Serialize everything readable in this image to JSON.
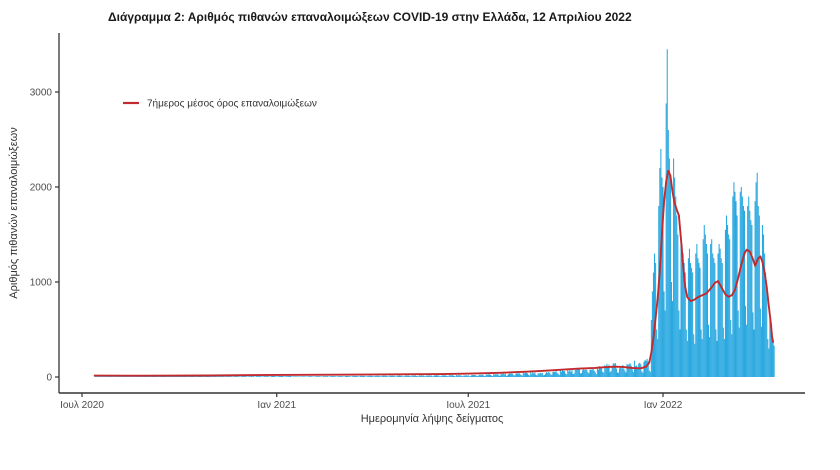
{
  "chart_data": {
    "type": "bar",
    "title": "Διάγραμμα 2: Αριθμός πιθανών επαναλοιμώξεων COVID-19 στην Ελλάδα, 12 Απριλίου 2022",
    "xlabel": "Ημερομηνία λήψης δείγματος",
    "ylabel": "Αριθμός πιθανών επαναλοιμώξεων",
    "legend": {
      "label": "7ήμερος μέσος όρος επαναλοιμώξεων",
      "color": "#c22a2e",
      "type": "line"
    },
    "bar_color": "#2aa8e0",
    "line_color": "#c22a2e",
    "axis_color": "#333333",
    "grid": "off",
    "legend_position": "inside-top-left",
    "x_ticks": [
      {
        "label": "Ιουλ 2020",
        "day": 0
      },
      {
        "label": "Ιαν 2021",
        "day": 184
      },
      {
        "label": "Ιουλ 2021",
        "day": 365
      },
      {
        "label": "Ιαν 2022",
        "day": 549
      }
    ],
    "y_ticks": [
      0,
      1000,
      2000,
      3000
    ],
    "ylim": [
      0,
      3450
    ],
    "x_day0_label": "Ιουλ 2020",
    "peak": {
      "max_daily_bar": 3450,
      "second_max_daily_bar": 2880,
      "avg_line_max": 2170
    },
    "avg_line_7day": [
      [
        12,
        15
      ],
      [
        60,
        14
      ],
      [
        120,
        16
      ],
      [
        184,
        22
      ],
      [
        240,
        24
      ],
      [
        300,
        28
      ],
      [
        340,
        30
      ],
      [
        367,
        36
      ],
      [
        395,
        44
      ],
      [
        420,
        56
      ],
      [
        438,
        66
      ],
      [
        455,
        78
      ],
      [
        470,
        88
      ],
      [
        485,
        96
      ],
      [
        495,
        104
      ],
      [
        505,
        108
      ],
      [
        512,
        104
      ],
      [
        520,
        95
      ],
      [
        528,
        92
      ],
      [
        533,
        108
      ],
      [
        536,
        150
      ],
      [
        538,
        260
      ],
      [
        540,
        420
      ],
      [
        542,
        620
      ],
      [
        544,
        830
      ],
      [
        546,
        1120
      ],
      [
        548,
        1500
      ],
      [
        550,
        1850
      ],
      [
        552,
        2060
      ],
      [
        554,
        2170
      ],
      [
        556,
        2120
      ],
      [
        558,
        1950
      ],
      [
        560,
        1830
      ],
      [
        562,
        1760
      ],
      [
        564,
        1700
      ],
      [
        566,
        1450
      ],
      [
        568,
        1180
      ],
      [
        570,
        950
      ],
      [
        572,
        840
      ],
      [
        575,
        800
      ],
      [
        578,
        810
      ],
      [
        582,
        840
      ],
      [
        586,
        860
      ],
      [
        590,
        880
      ],
      [
        594,
        930
      ],
      [
        598,
        990
      ],
      [
        601,
        1010
      ],
      [
        604,
        950
      ],
      [
        608,
        870
      ],
      [
        611,
        845
      ],
      [
        614,
        860
      ],
      [
        617,
        920
      ],
      [
        620,
        1040
      ],
      [
        623,
        1180
      ],
      [
        626,
        1300
      ],
      [
        628,
        1340
      ],
      [
        631,
        1320
      ],
      [
        634,
        1240
      ],
      [
        636,
        1170
      ],
      [
        639,
        1250
      ],
      [
        641,
        1270
      ],
      [
        643,
        1210
      ],
      [
        645,
        1100
      ],
      [
        647,
        950
      ],
      [
        649,
        750
      ],
      [
        651,
        550
      ],
      [
        652,
        430
      ],
      [
        653,
        370
      ]
    ],
    "daily_bars_peak_window": {
      "start_day": 524,
      "values": [
        120,
        95,
        140,
        150,
        135,
        60,
        45,
        160,
        180,
        170,
        190,
        165,
        70,
        55,
        600,
        900,
        1100,
        1300,
        1200,
        500,
        400,
        1800,
        2200,
        2400,
        2100,
        2000,
        900,
        700,
        2880,
        3450,
        2600,
        2300,
        2100,
        1000,
        800,
        2300,
        2100,
        1900,
        1700,
        1500,
        700,
        500,
        1500,
        1400,
        1300,
        1200,
        1100,
        500,
        380,
        1250,
        1350,
        1200,
        1150,
        1100,
        450,
        350,
        1300,
        1400,
        1250,
        1200,
        1150,
        500,
        400,
        1450,
        1600,
        1500,
        1400,
        1300,
        550,
        420,
        1400,
        1450,
        1300,
        1250,
        1200,
        500,
        380,
        1300,
        1400,
        1350,
        1250,
        1200,
        520,
        400,
        1550,
        1700,
        1600,
        1500,
        1450,
        600,
        450,
        1900,
        2050,
        1950,
        1850,
        1700,
        700,
        520,
        1950,
        2000,
        1900,
        1800,
        1750,
        750,
        550,
        1800,
        1900,
        1750,
        1650,
        1600,
        680,
        500,
        1850,
        2050,
        2150,
        1800,
        1700,
        720,
        530,
        1600,
        1500,
        1300,
        1100,
        900,
        400,
        300,
        600,
        500,
        420,
        380,
        330
      ]
    },
    "daily_bars_early_segments": [
      {
        "from": 12,
        "to": 200,
        "lo": 3,
        "hi": 10
      },
      {
        "from": 200,
        "to": 360,
        "lo": 6,
        "hi": 18
      },
      {
        "from": 360,
        "to": 430,
        "lo": 15,
        "hi": 45
      },
      {
        "from": 430,
        "to": 480,
        "lo": 35,
        "hi": 90
      },
      {
        "from": 480,
        "to": 505,
        "lo": 70,
        "hi": 140
      },
      {
        "from": 505,
        "to": 524,
        "lo": 90,
        "hi": 150
      }
    ]
  }
}
